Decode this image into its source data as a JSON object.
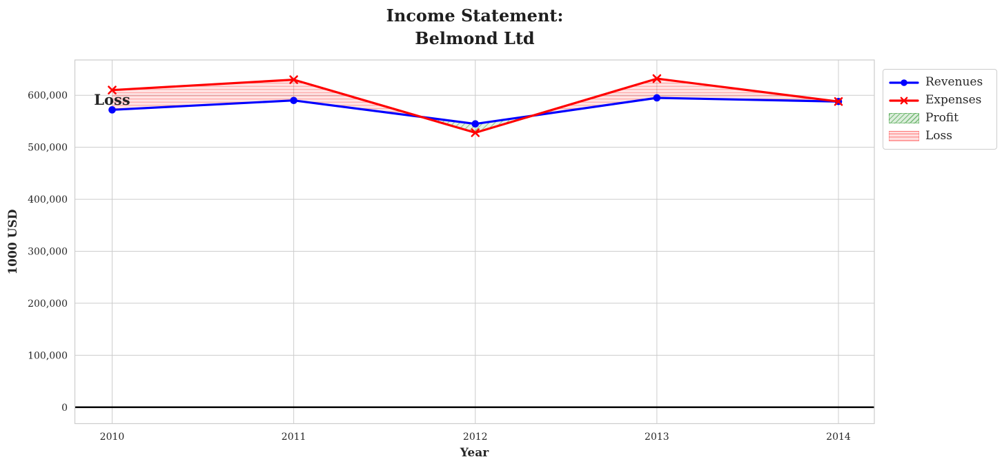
{
  "chart_data": {
    "type": "line",
    "title": "Income Statement:\nBelmond Ltd",
    "xlabel": "Year",
    "ylabel": "1000 USD",
    "x": [
      2010,
      2011,
      2012,
      2013,
      2014
    ],
    "xtick_labels": [
      "2010",
      "2011",
      "2012",
      "2013",
      "2014"
    ],
    "yticks": [
      0,
      100000,
      200000,
      300000,
      400000,
      500000,
      600000
    ],
    "ytick_labels": [
      "0",
      "100,000",
      "200,000",
      "300,000",
      "400,000",
      "500,000",
      "600,000"
    ],
    "xlim": [
      2009.8,
      2014.2
    ],
    "ylim": [
      -31000,
      668000
    ],
    "grid": true,
    "zero_line": true,
    "series": [
      {
        "name": "Revenues",
        "color": "#0000ff",
        "marker": "circle",
        "values": [
          572000,
          590000,
          545000,
          595000,
          588000
        ]
      },
      {
        "name": "Expenses",
        "color": "#ff0000",
        "marker": "x",
        "values": [
          610000,
          630000,
          528000,
          632000,
          588000
        ]
      }
    ],
    "fills": [
      {
        "name": "Profit",
        "condition": "revenues_above_expenses",
        "color": "#008000",
        "hatch": "diagonal"
      },
      {
        "name": "Loss",
        "condition": "expenses_above_revenues",
        "color": "#ff0000",
        "hatch": "horizontal"
      }
    ],
    "annotation": {
      "text": "Loss",
      "x": 2010,
      "y": 583000,
      "color": "#ff0000"
    },
    "legend": {
      "position": "outside-upper-right",
      "entries": [
        {
          "label": "Revenues",
          "type": "line",
          "color": "#0000ff",
          "marker": "circle"
        },
        {
          "label": "Expenses",
          "type": "line",
          "color": "#ff0000",
          "marker": "x"
        },
        {
          "label": "Profit",
          "type": "patch",
          "color": "#008000",
          "hatch": "diagonal"
        },
        {
          "label": "Loss",
          "type": "patch",
          "color": "#ff0000",
          "hatch": "horizontal"
        }
      ]
    },
    "colors": {
      "grid": "#cccccc",
      "frame": "#cccccc",
      "text": "#262626",
      "zero_line": "#000000",
      "background": "#ffffff"
    }
  }
}
